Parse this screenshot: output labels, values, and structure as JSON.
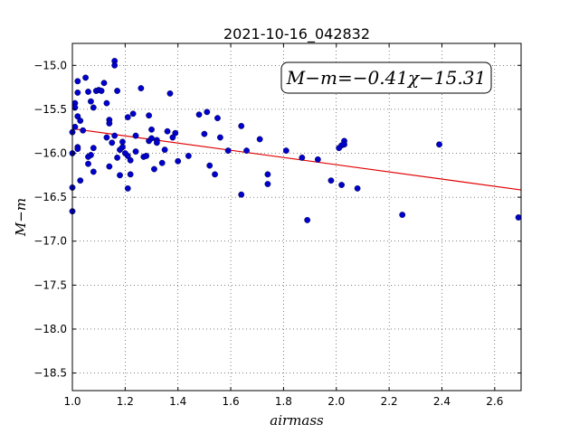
{
  "chart_data": {
    "type": "scatter",
    "title": "2021-10-16_042832",
    "xlabel": "airmass",
    "ylabel": "M−m",
    "xlim": [
      1.0,
      2.7
    ],
    "ylim": [
      -18.7,
      -14.75
    ],
    "y_inverted": true,
    "grid": true,
    "xticks": [
      1.0,
      1.2,
      1.4,
      1.6,
      1.8,
      2.0,
      2.2,
      2.4,
      2.6
    ],
    "xtick_labels": [
      "1.0",
      "1.2",
      "1.4",
      "1.6",
      "1.8",
      "2.0",
      "2.2",
      "2.4",
      "2.6"
    ],
    "yticks": [
      -15.0,
      -15.5,
      -16.0,
      -16.5,
      -17.0,
      -17.5,
      -18.0,
      -18.5
    ],
    "ytick_labels": [
      "−15.0",
      "−15.5",
      "−16.0",
      "−16.5",
      "−17.0",
      "−17.5",
      "−18.0",
      "−18.5"
    ],
    "annotation": "M−m=−0.41χ−15.31",
    "fit": {
      "slope": -0.41,
      "intercept": -15.31,
      "color": "#e00000"
    },
    "point_color": "#0000cc",
    "points": [
      [
        1.0,
        -15.76
      ],
      [
        1.0,
        -16.0
      ],
      [
        1.0,
        -16.39
      ],
      [
        1.0,
        -16.66
      ],
      [
        1.01,
        -15.43
      ],
      [
        1.01,
        -15.48
      ],
      [
        1.01,
        -15.7
      ],
      [
        1.02,
        -15.93
      ],
      [
        1.02,
        -15.95
      ],
      [
        1.02,
        -15.18
      ],
      [
        1.02,
        -15.31
      ],
      [
        1.02,
        -15.58
      ],
      [
        1.03,
        -15.63
      ],
      [
        1.03,
        -16.31
      ],
      [
        1.04,
        -15.74
      ],
      [
        1.05,
        -15.14
      ],
      [
        1.06,
        -15.3
      ],
      [
        1.06,
        -16.12
      ],
      [
        1.06,
        -16.04
      ],
      [
        1.07,
        -16.02
      ],
      [
        1.07,
        -15.41
      ],
      [
        1.08,
        -15.94
      ],
      [
        1.08,
        -15.48
      ],
      [
        1.08,
        -16.21
      ],
      [
        1.09,
        -15.29
      ],
      [
        1.1,
        -15.28
      ],
      [
        1.11,
        -15.29
      ],
      [
        1.12,
        -15.2
      ],
      [
        1.13,
        -15.43
      ],
      [
        1.13,
        -15.82
      ],
      [
        1.14,
        -15.62
      ],
      [
        1.14,
        -15.66
      ],
      [
        1.14,
        -16.15
      ],
      [
        1.15,
        -15.88
      ],
      [
        1.16,
        -15.8
      ],
      [
        1.16,
        -14.95
      ],
      [
        1.16,
        -15.0
      ],
      [
        1.17,
        -15.29
      ],
      [
        1.17,
        -16.05
      ],
      [
        1.18,
        -15.96
      ],
      [
        1.18,
        -16.25
      ],
      [
        1.19,
        -15.87
      ],
      [
        1.19,
        -15.93
      ],
      [
        1.2,
        -16.0
      ],
      [
        1.21,
        -15.59
      ],
      [
        1.21,
        -16.03
      ],
      [
        1.21,
        -16.4
      ],
      [
        1.22,
        -16.24
      ],
      [
        1.22,
        -16.08
      ],
      [
        1.23,
        -15.55
      ],
      [
        1.24,
        -15.8
      ],
      [
        1.24,
        -15.98
      ],
      [
        1.26,
        -15.26
      ],
      [
        1.27,
        -16.04
      ],
      [
        1.28,
        -16.03
      ],
      [
        1.29,
        -15.57
      ],
      [
        1.29,
        -15.86
      ],
      [
        1.3,
        -15.73
      ],
      [
        1.3,
        -15.83
      ],
      [
        1.31,
        -16.18
      ],
      [
        1.32,
        -15.85
      ],
      [
        1.32,
        -15.88
      ],
      [
        1.34,
        -16.11
      ],
      [
        1.35,
        -15.96
      ],
      [
        1.36,
        -15.75
      ],
      [
        1.37,
        -15.32
      ],
      [
        1.38,
        -15.82
      ],
      [
        1.39,
        -15.77
      ],
      [
        1.4,
        -16.09
      ],
      [
        1.44,
        -16.03
      ],
      [
        1.48,
        -15.56
      ],
      [
        1.5,
        -15.78
      ],
      [
        1.51,
        -15.53
      ],
      [
        1.52,
        -16.14
      ],
      [
        1.54,
        -16.24
      ],
      [
        1.55,
        -15.6
      ],
      [
        1.56,
        -15.82
      ],
      [
        1.59,
        -15.97
      ],
      [
        1.64,
        -15.69
      ],
      [
        1.64,
        -16.47
      ],
      [
        1.66,
        -15.97
      ],
      [
        1.71,
        -15.84
      ],
      [
        1.74,
        -16.24
      ],
      [
        1.74,
        -16.35
      ],
      [
        1.81,
        -15.97
      ],
      [
        1.87,
        -16.05
      ],
      [
        1.89,
        -16.76
      ],
      [
        1.93,
        -16.07
      ],
      [
        1.98,
        -16.31
      ],
      [
        2.01,
        -15.94
      ],
      [
        2.02,
        -15.91
      ],
      [
        2.02,
        -16.36
      ],
      [
        2.03,
        -15.86
      ],
      [
        2.03,
        -15.9
      ],
      [
        2.08,
        -16.4
      ],
      [
        2.25,
        -16.7
      ],
      [
        2.39,
        -15.9
      ],
      [
        2.69,
        -16.73
      ]
    ]
  }
}
